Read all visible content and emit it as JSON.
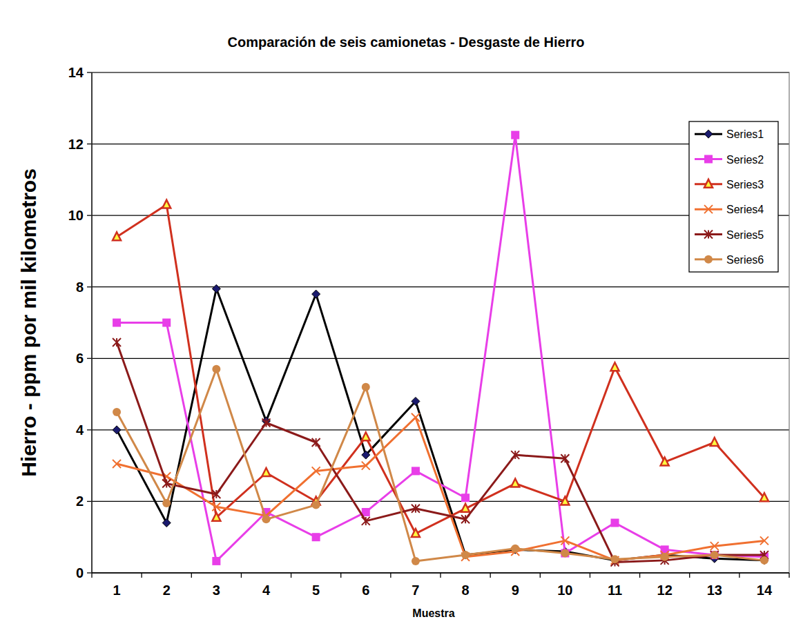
{
  "chart_data": {
    "type": "line",
    "title": "Comparación de seis camionetas - Desgaste de Hierro",
    "x_label": "Muestra",
    "y_label": "Hierro - ppm por mil kilometros",
    "categories": [
      1,
      2,
      3,
      4,
      5,
      6,
      7,
      8,
      9,
      10,
      11,
      12,
      13,
      14
    ],
    "series": [
      {
        "name": "Series1",
        "color": "#000000",
        "marker": "diamond",
        "values": [
          4.0,
          1.4,
          7.95,
          4.25,
          7.8,
          3.3,
          4.8,
          0.5,
          0.65,
          0.6,
          0.35,
          0.5,
          0.4,
          0.35
        ]
      },
      {
        "name": "Series2",
        "color": "#e83ee8",
        "marker": "square",
        "values": [
          7.0,
          7.0,
          0.33,
          1.7,
          1.0,
          1.7,
          2.85,
          2.1,
          12.25,
          0.55,
          1.4,
          0.65,
          0.5,
          0.45
        ]
      },
      {
        "name": "Series3",
        "color": "#d0301e",
        "marker": "triangle",
        "values": [
          9.4,
          10.3,
          1.55,
          2.8,
          2.0,
          3.8,
          1.1,
          1.8,
          2.5,
          2.0,
          5.75,
          3.1,
          3.65,
          2.1
        ]
      },
      {
        "name": "Series4",
        "color": "#f07030",
        "marker": "x",
        "values": [
          3.05,
          2.7,
          1.85,
          1.6,
          2.85,
          3.0,
          4.35,
          0.45,
          0.6,
          0.9,
          0.35,
          0.5,
          0.75,
          0.9
        ]
      },
      {
        "name": "Series5",
        "color": "#8b1a1a",
        "marker": "star",
        "values": [
          6.45,
          2.5,
          2.2,
          4.2,
          3.65,
          1.45,
          1.8,
          1.5,
          3.3,
          3.2,
          0.3,
          0.35,
          0.5,
          0.5
        ]
      },
      {
        "name": "Series6",
        "color": "#d08848",
        "marker": "circle",
        "values": [
          4.5,
          1.95,
          5.7,
          1.5,
          1.9,
          5.2,
          0.33,
          0.5,
          0.68,
          0.55,
          0.38,
          0.45,
          0.5,
          0.35
        ]
      }
    ],
    "ylim": [
      0,
      14
    ],
    "yticks": [
      0,
      2,
      4,
      6,
      8,
      10,
      12,
      14
    ],
    "grid": true,
    "legend": "top-right"
  }
}
